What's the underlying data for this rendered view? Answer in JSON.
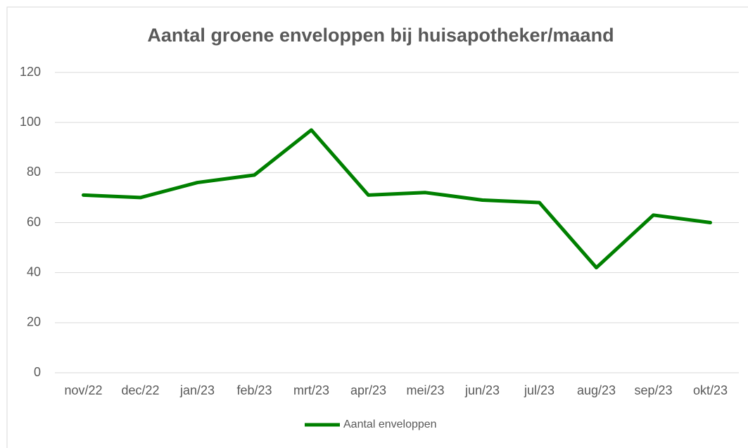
{
  "chart_data": {
    "type": "line",
    "title": "Aantal groene enveloppen bij huisapotheker/maand",
    "categories": [
      "nov/22",
      "dec/22",
      "jan/23",
      "feb/23",
      "mrt/23",
      "apr/23",
      "mei/23",
      "jun/23",
      "jul/23",
      "aug/23",
      "sep/23",
      "okt/23"
    ],
    "series": [
      {
        "name": "Aantal enveloppen",
        "color": "#008000",
        "values": [
          71,
          70,
          76,
          79,
          97,
          71,
          72,
          69,
          68,
          42,
          63,
          60
        ]
      }
    ],
    "ylim": [
      0,
      120
    ],
    "yticks": [
      0,
      20,
      40,
      60,
      80,
      100,
      120
    ],
    "grid": true,
    "legend": "bottom"
  }
}
